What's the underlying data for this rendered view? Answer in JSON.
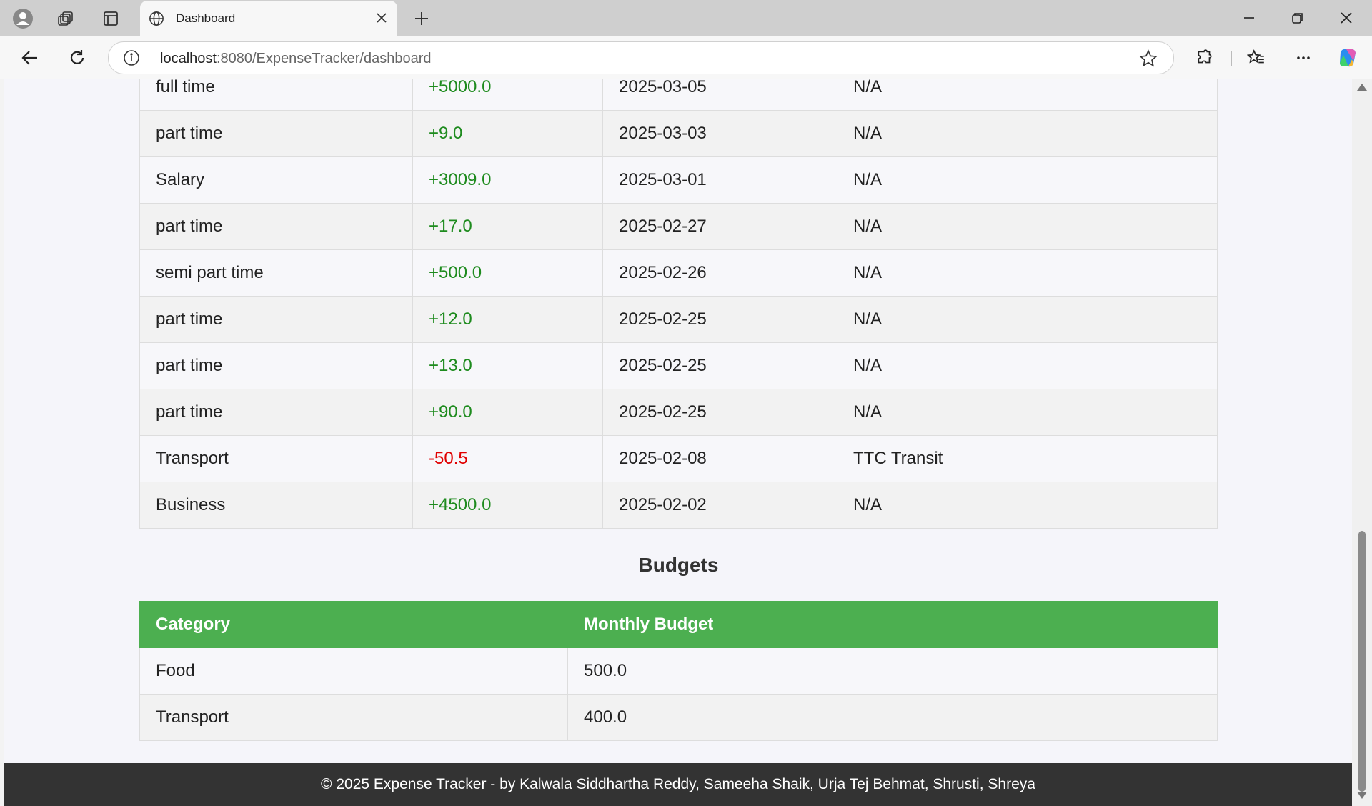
{
  "browser": {
    "tab_title": "Dashboard",
    "url_host": "localhost",
    "url_rest": ":8080/ExpenseTracker/dashboard"
  },
  "transactions": [
    {
      "category": "full time",
      "amount": "+5000.0",
      "date": "2025-03-05",
      "note": "N/A",
      "type": "income"
    },
    {
      "category": "part time",
      "amount": "+9.0",
      "date": "2025-03-03",
      "note": "N/A",
      "type": "income"
    },
    {
      "category": "Salary",
      "amount": "+3009.0",
      "date": "2025-03-01",
      "note": "N/A",
      "type": "income"
    },
    {
      "category": "part time",
      "amount": "+17.0",
      "date": "2025-02-27",
      "note": "N/A",
      "type": "income"
    },
    {
      "category": "semi part time",
      "amount": "+500.0",
      "date": "2025-02-26",
      "note": "N/A",
      "type": "income"
    },
    {
      "category": "part time",
      "amount": "+12.0",
      "date": "2025-02-25",
      "note": "N/A",
      "type": "income"
    },
    {
      "category": "part time",
      "amount": "+13.0",
      "date": "2025-02-25",
      "note": "N/A",
      "type": "income"
    },
    {
      "category": "part time",
      "amount": "+90.0",
      "date": "2025-02-25",
      "note": "N/A",
      "type": "income"
    },
    {
      "category": "Transport",
      "amount": "-50.5",
      "date": "2025-02-08",
      "note": "TTC Transit",
      "type": "expense"
    },
    {
      "category": "Business",
      "amount": "+4500.0",
      "date": "2025-02-02",
      "note": "N/A",
      "type": "income"
    }
  ],
  "budgets": {
    "title": "Budgets",
    "headers": [
      "Category",
      "Monthly Budget"
    ],
    "rows": [
      {
        "category": "Food",
        "amount": "500.0"
      },
      {
        "category": "Transport",
        "amount": "400.0"
      }
    ]
  },
  "footer": "© 2025 Expense Tracker - by Kalwala Siddhartha Reddy, Sameeha Shaik, Urja Tej Behmat, Shrusti, Shreya",
  "colors": {
    "income": "#1e8b1e",
    "expense": "#e00000",
    "header_green": "#4caf50"
  }
}
